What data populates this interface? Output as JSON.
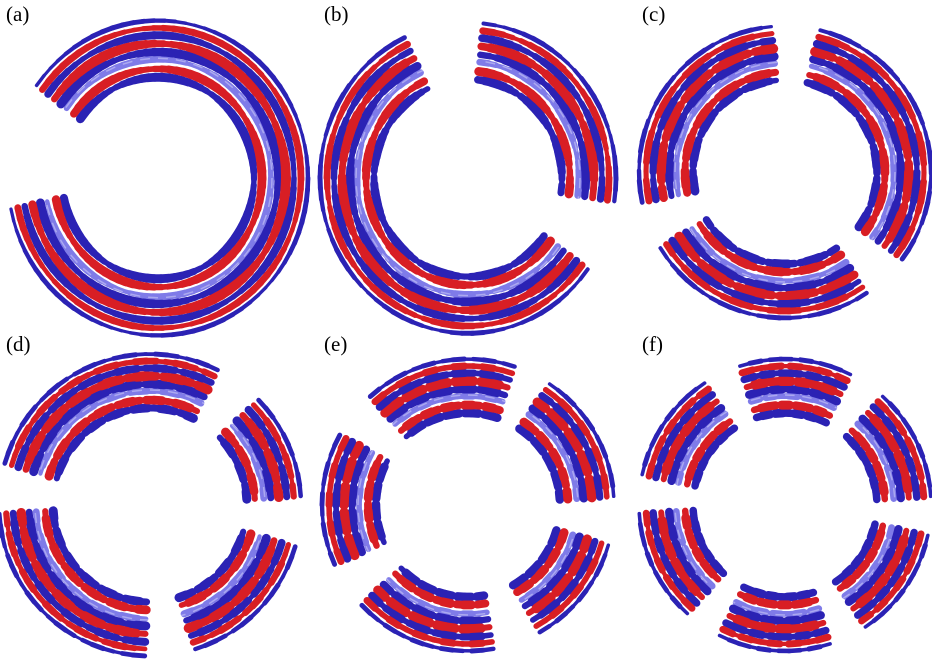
{
  "figure": {
    "colors": {
      "positive": "#d81e24",
      "negative": "#2b22b4",
      "negative_light": "#7f7be8",
      "background": "#ffffff"
    },
    "panels": [
      {
        "id": "a",
        "label": "(a)",
        "azimuthal_mode": 1
      },
      {
        "id": "b",
        "label": "(b)",
        "azimuthal_mode": 2
      },
      {
        "id": "c",
        "label": "(c)",
        "azimuthal_mode": 3
      },
      {
        "id": "d",
        "label": "(d)",
        "azimuthal_mode": 4
      },
      {
        "id": "e",
        "label": "(e)",
        "azimuthal_mode": 5
      },
      {
        "id": "f",
        "label": "(f)",
        "azimuthal_mode": 6
      }
    ]
  }
}
